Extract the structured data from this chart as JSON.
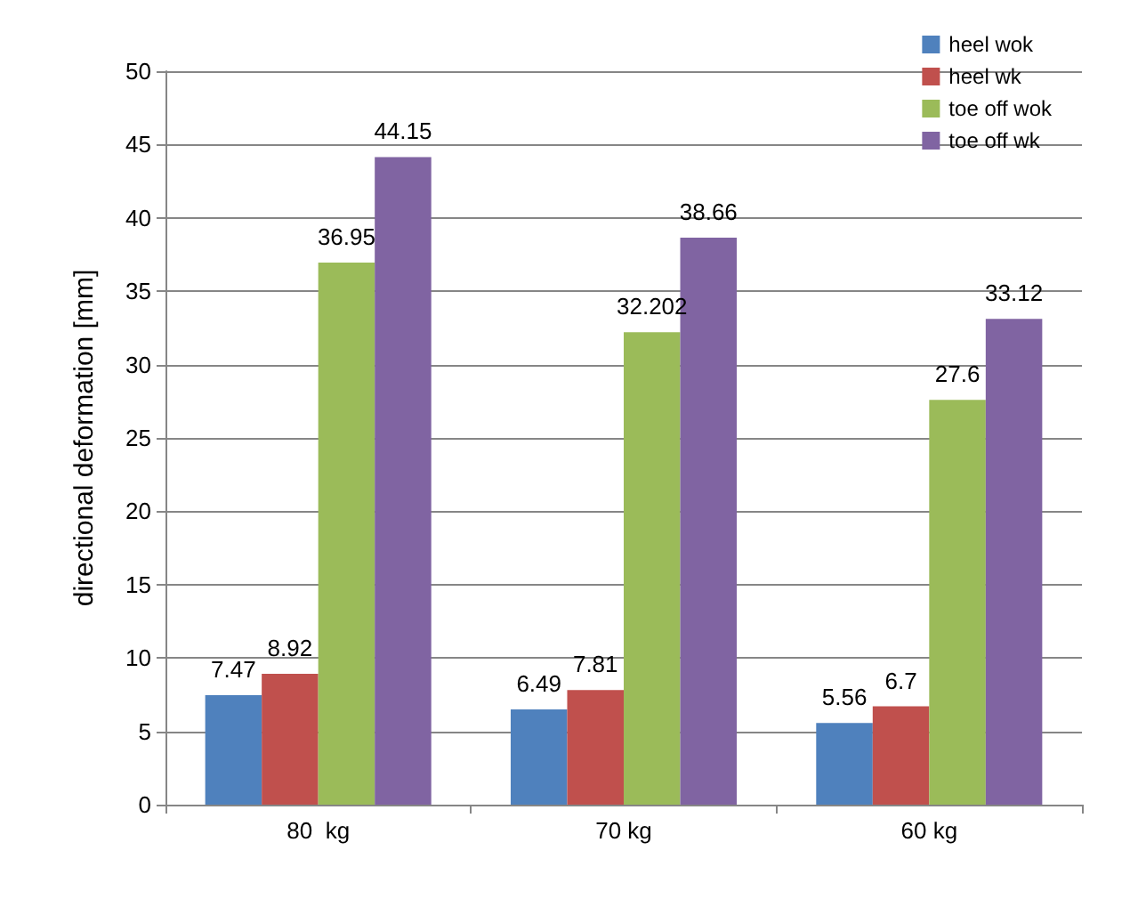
{
  "chart_data": {
    "type": "bar",
    "ylabel": "directional deformation [mm]",
    "categories": [
      "80  kg",
      "70 kg",
      "60 kg"
    ],
    "series": [
      {
        "name": "heel wok",
        "color": "#4f81bd",
        "values": [
          7.47,
          6.49,
          5.56
        ]
      },
      {
        "name": "heel wk",
        "color": "#c0504d",
        "values": [
          8.92,
          7.81,
          6.7
        ]
      },
      {
        "name": "toe off wok",
        "color": "#9bbb59",
        "values": [
          36.95,
          32.202,
          27.6
        ]
      },
      {
        "name": "toe off wk",
        "color": "#8064a2",
        "values": [
          44.15,
          38.66,
          33.12
        ]
      }
    ],
    "ylim": [
      0,
      50
    ],
    "yticks": [
      0,
      5,
      10,
      15,
      20,
      25,
      30,
      35,
      40,
      45,
      50
    ],
    "grid": "y",
    "legend": "top right",
    "data_labels": true
  }
}
